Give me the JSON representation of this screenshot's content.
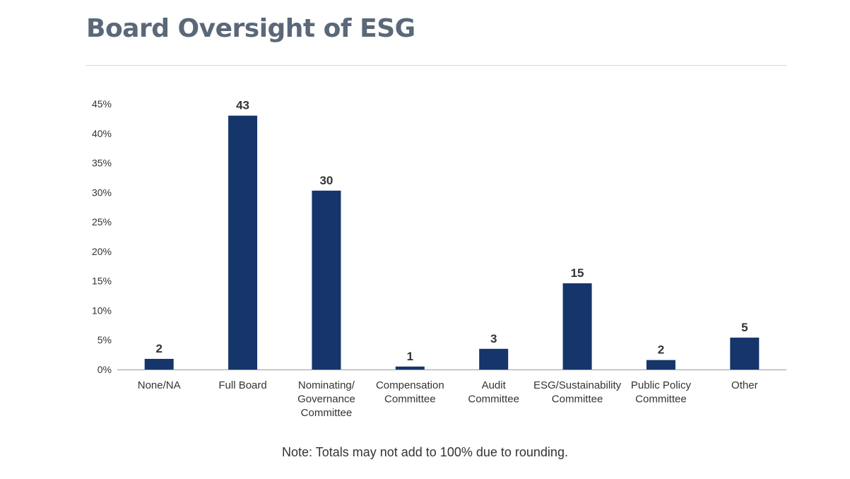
{
  "title": "Board Oversight of ESG",
  "note": "Note: Totals may not add to 100% due to rounding.",
  "colors": {
    "bar": "#15356b",
    "axis": "#9a9a9a",
    "text": "#333333",
    "title": "#5a6878"
  },
  "chart_data": {
    "type": "bar",
    "categories": [
      [
        "None/NA"
      ],
      [
        "Full Board"
      ],
      [
        "Nominating/",
        "Governance",
        "Committee"
      ],
      [
        "Compensation",
        "Committee"
      ],
      [
        "Audit",
        "Committee"
      ],
      [
        "ESG/Sustainability",
        "Committee"
      ],
      [
        "Public Policy",
        "Committee"
      ],
      [
        "Other"
      ]
    ],
    "values": [
      1.8,
      43,
      30.3,
      0.5,
      3.5,
      14.6,
      1.6,
      5.4
    ],
    "data_labels": [
      "2",
      "43",
      "30",
      "1",
      "3",
      "15",
      "2",
      "5"
    ],
    "ylim": [
      0,
      45
    ],
    "yticks": [
      0,
      5,
      10,
      15,
      20,
      25,
      30,
      35,
      40,
      45
    ],
    "ytick_labels": [
      "0%",
      "5%",
      "10%",
      "15%",
      "20%",
      "25%",
      "30%",
      "35%",
      "40%",
      "45%"
    ],
    "xlabel": "",
    "ylabel": "",
    "grid": false,
    "legend": "none"
  }
}
